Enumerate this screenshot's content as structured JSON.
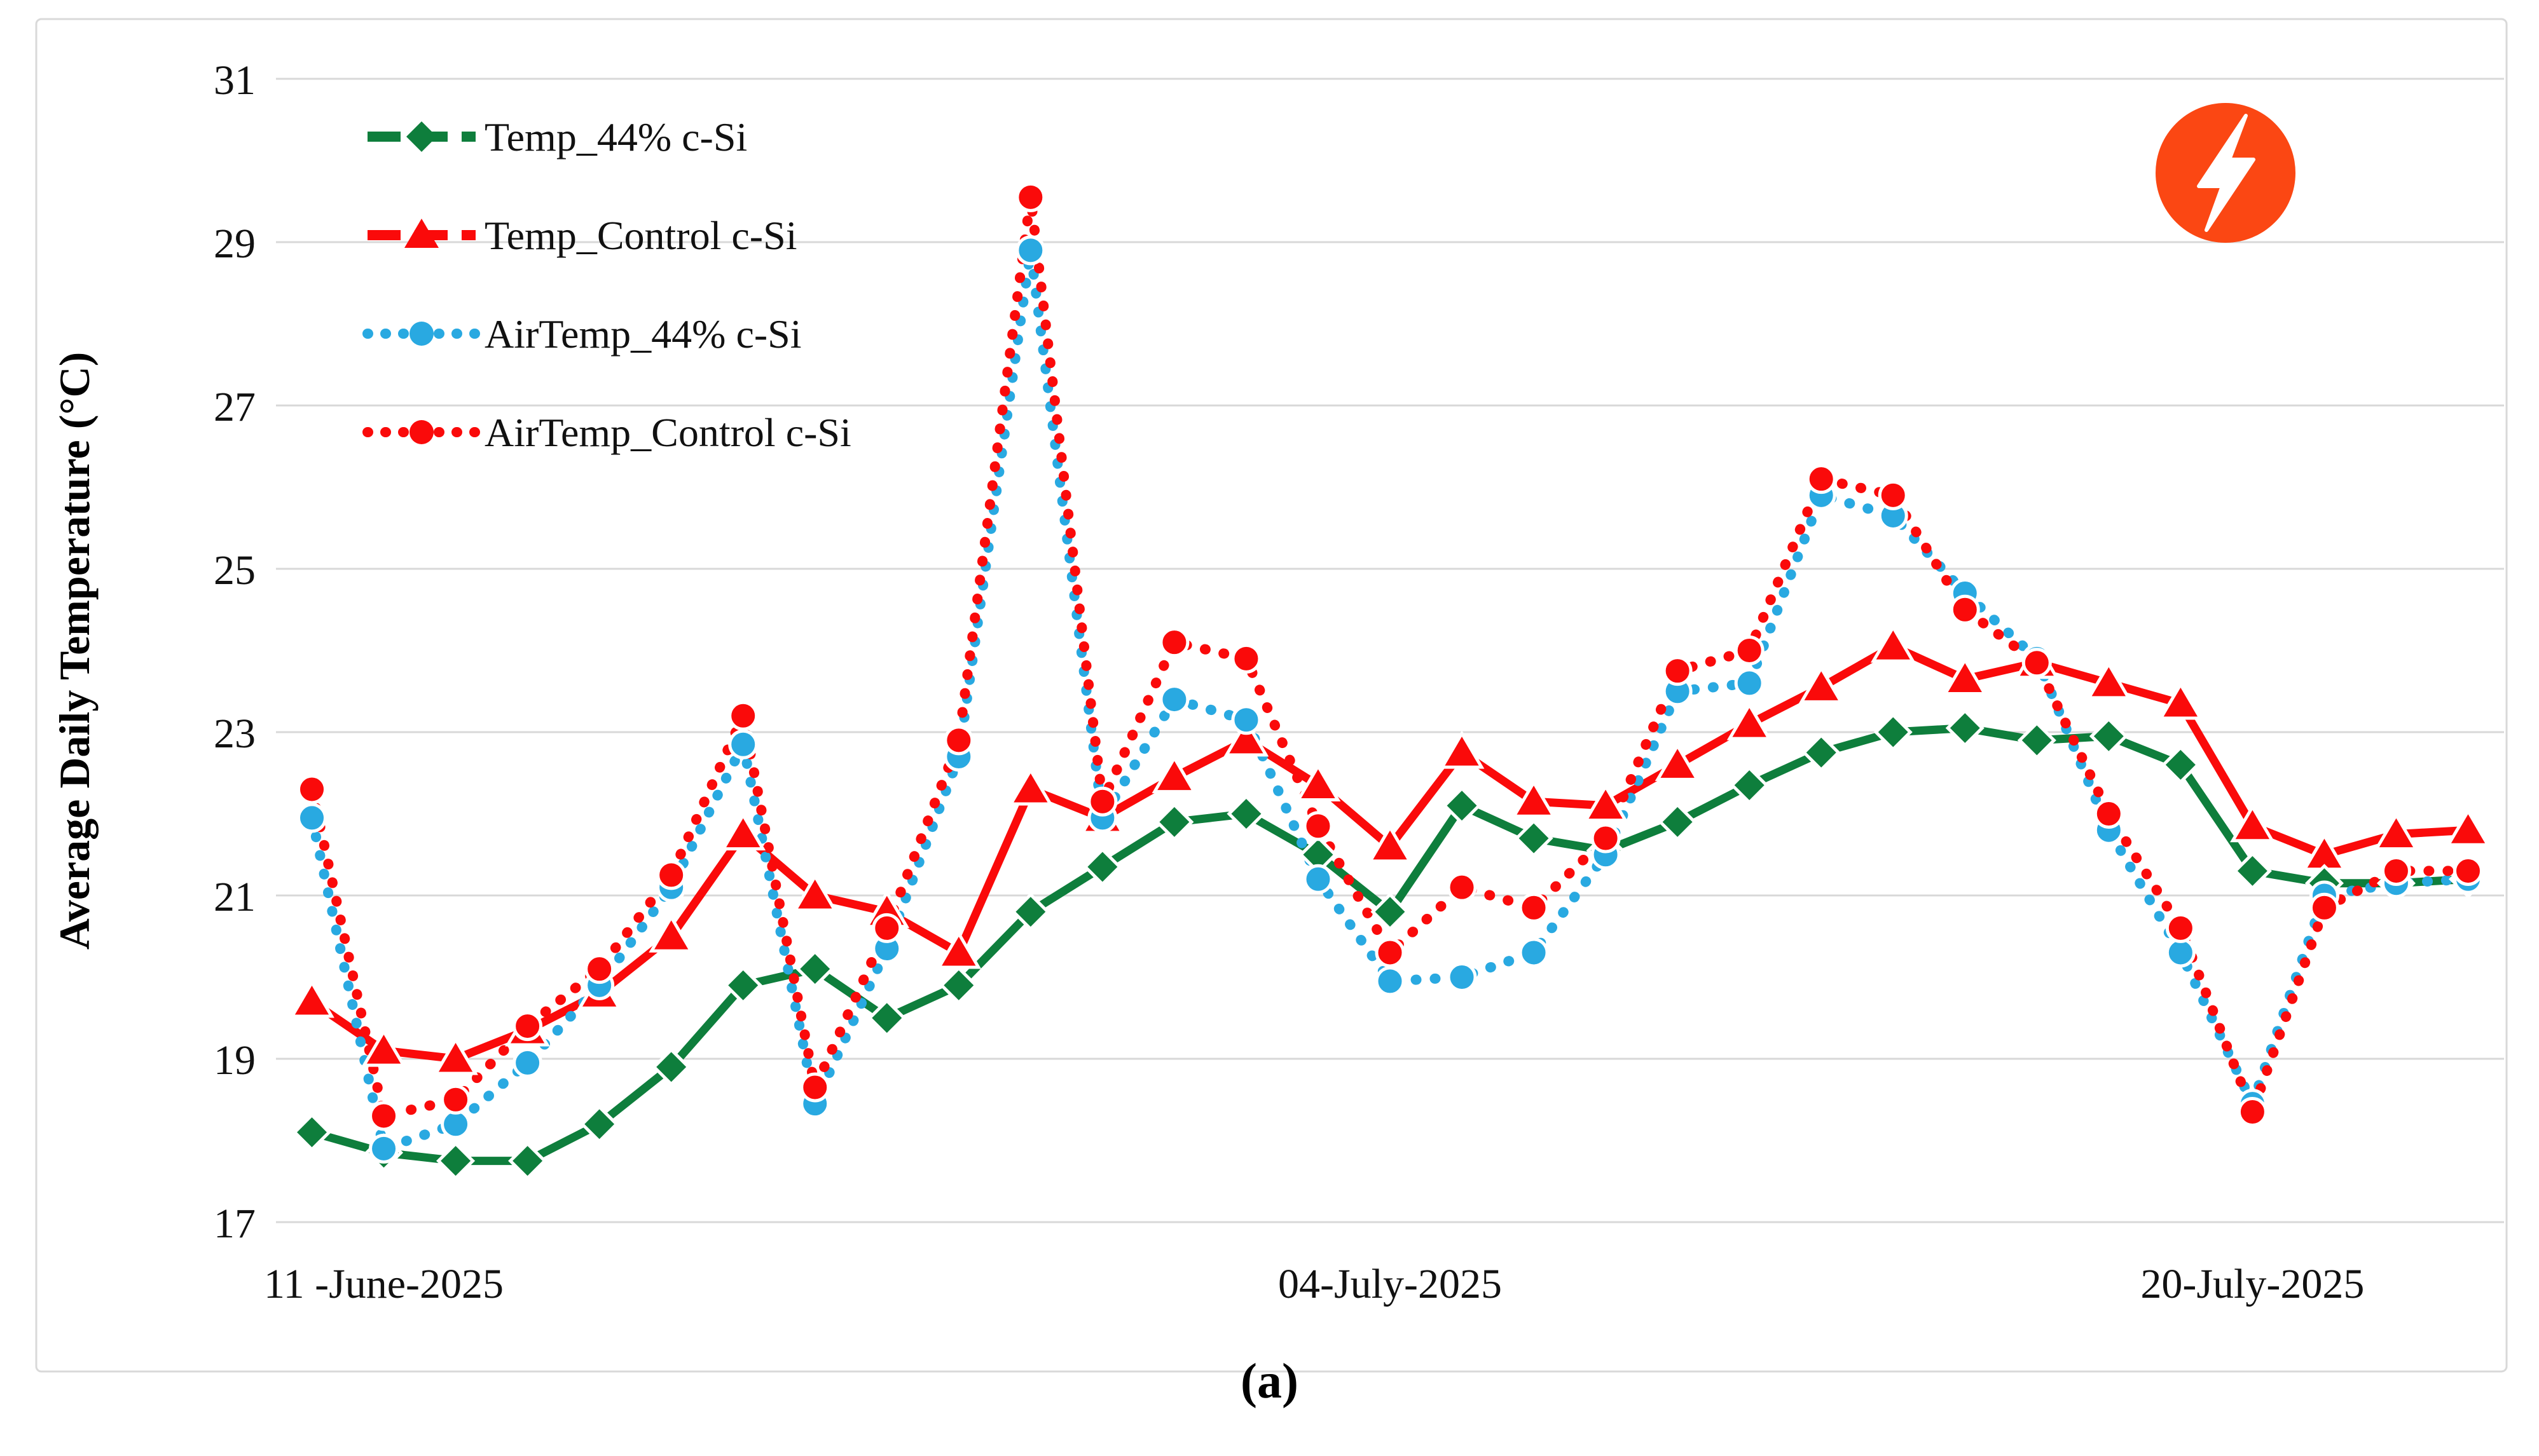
{
  "figure": {
    "caption": "(a)"
  },
  "icon": {
    "name": "lightning-bolt-icon",
    "bg_color": "#FB4713",
    "glyph_color": "#FFFFFF"
  },
  "chart_data": {
    "type": "line",
    "title": "",
    "xlabel": "",
    "ylabel": "Average Daily Temperature (°C)",
    "ylim": [
      17,
      31
    ],
    "yticks": [
      17,
      19,
      21,
      23,
      25,
      27,
      29,
      31
    ],
    "grid": true,
    "legend_position": "top-left-inside",
    "x_slot_count": 31,
    "x_tick_labels": [
      {
        "index": 1,
        "label": "11 -June-2025"
      },
      {
        "index": 15,
        "label": "04-July-2025"
      },
      {
        "index": 27,
        "label": "20-July-2025"
      }
    ],
    "series": [
      {
        "name": "Temp_44% c-Si",
        "color": "#0E7E3C",
        "style": "solid",
        "marker": "diamond",
        "values": [
          18.1,
          17.85,
          17.75,
          17.75,
          18.2,
          18.9,
          19.9,
          20.1,
          19.5,
          19.9,
          20.8,
          21.35,
          21.9,
          22.0,
          21.5,
          20.8,
          22.1,
          21.7,
          21.55,
          21.9,
          22.35,
          22.75,
          23.0,
          23.05,
          22.9,
          22.95,
          22.6,
          21.3,
          21.15,
          21.15,
          21.2
        ]
      },
      {
        "name": "Temp_Control c-Si",
        "color": "#FA0A0A",
        "style": "solid",
        "marker": "triangle",
        "values": [
          19.7,
          19.1,
          19.0,
          19.35,
          19.8,
          20.5,
          21.75,
          21.0,
          20.8,
          20.3,
          22.3,
          21.95,
          22.45,
          22.9,
          22.35,
          21.6,
          22.75,
          22.15,
          22.1,
          22.6,
          23.1,
          23.55,
          24.05,
          23.65,
          23.85,
          23.6,
          23.35,
          21.85,
          21.5,
          21.75,
          21.8
        ]
      },
      {
        "name": "AirTemp_44% c-Si",
        "color": "#29A9E1",
        "style": "dotted",
        "marker": "circle",
        "values": [
          21.95,
          17.9,
          18.2,
          18.95,
          19.9,
          21.1,
          22.85,
          18.45,
          20.35,
          22.7,
          28.9,
          21.95,
          23.4,
          23.15,
          21.2,
          19.95,
          20.0,
          20.3,
          21.5,
          23.5,
          23.6,
          25.9,
          25.65,
          24.7,
          23.9,
          21.8,
          20.3,
          18.45,
          21.0,
          21.15,
          21.2
        ]
      },
      {
        "name": "AirTemp_Control c-Si",
        "color": "#FA0A0A",
        "style": "dotted",
        "marker": "circle",
        "values": [
          22.3,
          18.3,
          18.5,
          19.4,
          20.1,
          21.25,
          23.2,
          18.65,
          20.6,
          22.9,
          29.55,
          22.15,
          24.1,
          23.9,
          21.85,
          20.3,
          21.1,
          20.85,
          21.7,
          23.75,
          24.0,
          26.1,
          25.9,
          24.5,
          23.85,
          22.0,
          20.6,
          18.35,
          20.85,
          21.3,
          21.3
        ]
      }
    ]
  }
}
